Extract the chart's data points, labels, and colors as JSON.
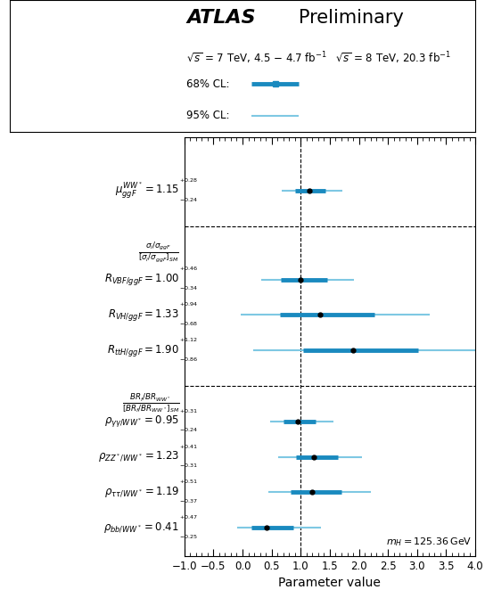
{
  "color_68": "#1a8abf",
  "color_95": "#7ec8e3",
  "xlim": [
    -1,
    4
  ],
  "xticks": [
    -1,
    -0.5,
    0,
    0.5,
    1,
    1.5,
    2,
    2.5,
    3,
    3.5,
    4
  ],
  "params": [
    {
      "central": 1.15,
      "err68_lo": 0.24,
      "err68_hi": 0.28,
      "err95_lo": 0.48,
      "err95_hi": 0.56,
      "y": 0
    },
    {
      "central": 1.0,
      "err68_lo": 0.34,
      "err68_hi": 0.46,
      "err95_lo": 0.68,
      "err95_hi": 0.92,
      "y": 3
    },
    {
      "central": 1.33,
      "err68_lo": 0.68,
      "err68_hi": 0.94,
      "err95_lo": 1.36,
      "err95_hi": 1.88,
      "y": 4
    },
    {
      "central": 1.9,
      "err68_lo": 0.86,
      "err68_hi": 1.12,
      "err95_lo": 1.72,
      "err95_hi": 2.24,
      "y": 5
    },
    {
      "central": 0.95,
      "err68_lo": 0.24,
      "err68_hi": 0.31,
      "err95_lo": 0.48,
      "err95_hi": 0.62,
      "y": 7
    },
    {
      "central": 1.23,
      "err68_lo": 0.31,
      "err68_hi": 0.41,
      "err95_lo": 0.62,
      "err95_hi": 0.82,
      "y": 8
    },
    {
      "central": 1.19,
      "err68_lo": 0.37,
      "err68_hi": 0.51,
      "err95_lo": 0.74,
      "err95_hi": 1.02,
      "y": 9
    },
    {
      "central": 0.41,
      "err68_lo": 0.25,
      "err68_hi": 0.47,
      "err95_lo": 0.5,
      "err95_hi": 0.94,
      "y": 10
    }
  ]
}
